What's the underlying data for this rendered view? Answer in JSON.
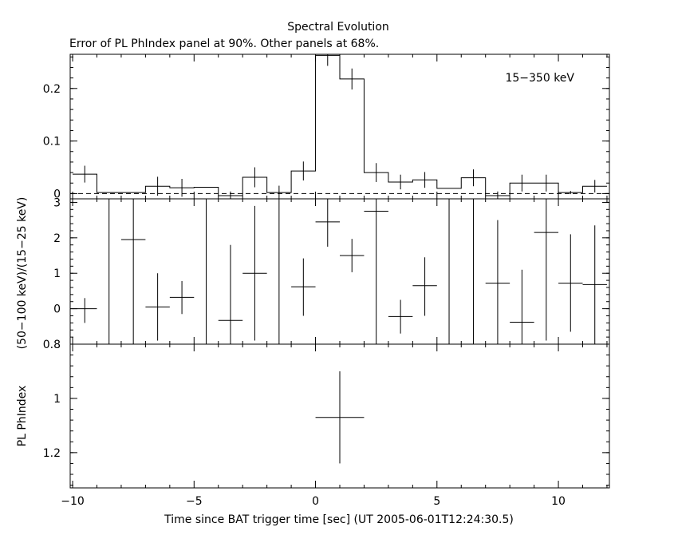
{
  "chart_data": [
    {
      "type": "step",
      "title": "Spectral Evolution",
      "subtitle": "Error of PL PhIndex panel at 90%. Other panels at 68%.",
      "annotation": "15−350 keV",
      "ylabel": "",
      "ylim": [
        -0.01,
        0.265
      ],
      "yticks": [
        0,
        0.1,
        0.2
      ],
      "ytick_labels": [
        "0",
        "0.1",
        "0.2"
      ],
      "reference_line": {
        "y": 0,
        "style": "dashed"
      },
      "bins": [
        {
          "x0": -10,
          "x1": -9,
          "y": 0.037,
          "err": 0.016
        },
        {
          "x0": -9,
          "x1": -8,
          "y": 0.002,
          "err": 0.0
        },
        {
          "x0": -8,
          "x1": -7,
          "y": 0.002,
          "err": 0.0
        },
        {
          "x0": -7,
          "x1": -6,
          "y": 0.014,
          "err": 0.018
        },
        {
          "x0": -6,
          "x1": -5,
          "y": 0.011,
          "err": 0.017
        },
        {
          "x0": -5,
          "x1": -4,
          "y": 0.012,
          "err": 0.0
        },
        {
          "x0": -4,
          "x1": -3,
          "y": -0.004,
          "err": 0.008
        },
        {
          "x0": -3,
          "x1": -2,
          "y": 0.031,
          "err": 0.019
        },
        {
          "x0": -2,
          "x1": -1,
          "y": 0.002,
          "err": 0.013
        },
        {
          "x0": -1,
          "x1": 0,
          "y": 0.043,
          "err": 0.018
        },
        {
          "x0": 0,
          "x1": 1,
          "y": 0.263,
          "err": 0.02
        },
        {
          "x0": 1,
          "x1": 2,
          "y": 0.218,
          "err": 0.02
        },
        {
          "x0": 2,
          "x1": 3,
          "y": 0.04,
          "err": 0.018
        },
        {
          "x0": 3,
          "x1": 4,
          "y": 0.022,
          "err": 0.014
        },
        {
          "x0": 4,
          "x1": 5,
          "y": 0.026,
          "err": 0.015
        },
        {
          "x0": 5,
          "x1": 6,
          "y": 0.01,
          "err": 0.0
        },
        {
          "x0": 6,
          "x1": 7,
          "y": 0.03,
          "err": 0.016
        },
        {
          "x0": 7,
          "x1": 8,
          "y": -0.004,
          "err": 0.008
        },
        {
          "x0": 8,
          "x1": 9,
          "y": 0.02,
          "err": 0.016
        },
        {
          "x0": 9,
          "x1": 10,
          "y": 0.02,
          "err": 0.016
        },
        {
          "x0": 10,
          "x1": 11,
          "y": 0.002,
          "err": 0.003
        },
        {
          "x0": 11,
          "x1": 12,
          "y": 0.014,
          "err": 0.012
        }
      ]
    },
    {
      "type": "scatter",
      "ylabel": "(50−100 keV)/(15−25 keV)",
      "ylim": [
        -1,
        3.1
      ],
      "yticks": [
        0,
        1,
        2,
        3
      ],
      "ytick_labels": [
        "0",
        "1",
        "2",
        "3"
      ],
      "points": [
        {
          "x": -9.5,
          "y": 0.0,
          "xerr": 0.5,
          "ylo": -0.4,
          "yhi": 0.3
        },
        {
          "x": -7.5,
          "y": 1.95,
          "xerr": 0.5,
          "ylo": -1.0,
          "yhi": 3.1
        },
        {
          "x": -6.5,
          "y": 0.05,
          "xerr": 0.5,
          "ylo": -0.9,
          "yhi": 1.0
        },
        {
          "x": -5.5,
          "y": 0.32,
          "xerr": 0.5,
          "ylo": -0.15,
          "yhi": 0.78
        },
        {
          "x": -3.5,
          "y": -0.33,
          "xerr": 0.5,
          "ylo": -1.0,
          "yhi": 1.8
        },
        {
          "x": -2.5,
          "y": 1.0,
          "xerr": 0.5,
          "ylo": -0.9,
          "yhi": 2.9
        },
        {
          "x": -0.5,
          "y": 0.62,
          "xerr": 0.5,
          "ylo": -0.2,
          "yhi": 1.42
        },
        {
          "x": 0.5,
          "y": 2.45,
          "xerr": 0.5,
          "ylo": 1.75,
          "yhi": 3.1
        },
        {
          "x": 1.5,
          "y": 1.5,
          "xerr": 0.5,
          "ylo": 1.03,
          "yhi": 1.97
        },
        {
          "x": 2.5,
          "y": 2.75,
          "xerr": 0.5,
          "ylo": -1.0,
          "yhi": 3.1
        },
        {
          "x": 3.5,
          "y": -0.22,
          "xerr": 0.5,
          "ylo": -0.7,
          "yhi": 0.25
        },
        {
          "x": 4.5,
          "y": 0.65,
          "xerr": 0.5,
          "ylo": -0.2,
          "yhi": 1.45
        },
        {
          "x": 7.5,
          "y": 0.72,
          "xerr": 0.5,
          "ylo": -1.0,
          "yhi": 2.5
        },
        {
          "x": 8.5,
          "y": -0.38,
          "xerr": 0.5,
          "ylo": -1.0,
          "yhi": 1.1
        },
        {
          "x": 9.5,
          "y": 2.15,
          "xerr": 0.5,
          "ylo": -0.9,
          "yhi": 3.1
        },
        {
          "x": 10.5,
          "y": 0.72,
          "xerr": 0.5,
          "ylo": -0.65,
          "yhi": 2.1
        },
        {
          "x": 11.5,
          "y": 0.68,
          "xerr": 0.5,
          "ylo": -1.0,
          "yhi": 2.35
        }
      ],
      "unconstrained_lines": [
        -8.5,
        -4.5,
        -1.5,
        5.5,
        6.5
      ]
    },
    {
      "type": "scatter",
      "ylabel": "PL PhIndex",
      "ylim": [
        1.33,
        0.8
      ],
      "yticks": [
        0.8,
        1,
        1.2
      ],
      "ytick_labels": [
        "0.8",
        "1",
        "1.2"
      ],
      "points": [
        {
          "x": 1.0,
          "y": 1.07,
          "xerr": 1.0,
          "ylo": 0.9,
          "yhi": 1.24
        }
      ],
      "xlabel": "Time since BAT trigger time [sec] (UT 2005-06-01T12:24:30.5)",
      "xlim": [
        -10.1,
        12.1
      ],
      "xticks": [
        -10,
        -5,
        0,
        5,
        10
      ],
      "xtick_labels": [
        "−10",
        "−5",
        "0",
        "5",
        "10"
      ]
    }
  ]
}
